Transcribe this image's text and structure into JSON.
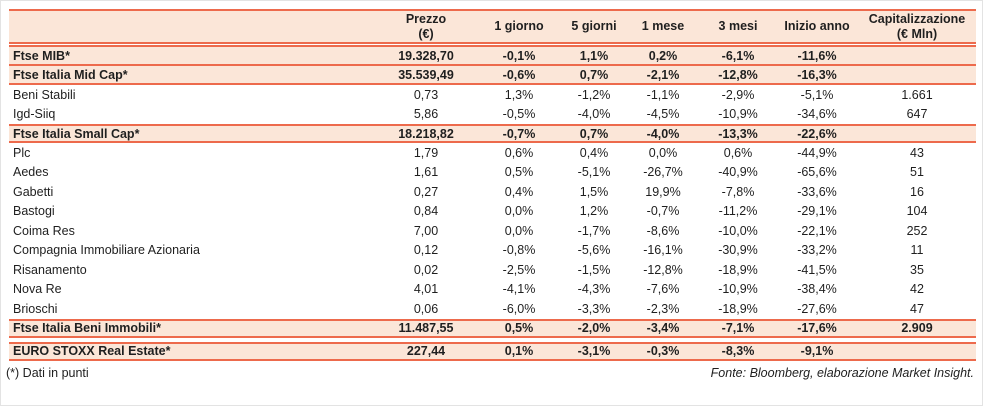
{
  "colors": {
    "accent": "#ed6a4c",
    "band": "#fbe6d8",
    "text": "#1f1f1f"
  },
  "table": {
    "header": {
      "name_label": "",
      "columns": [
        {
          "line1": "Prezzo",
          "line2": "(€)"
        },
        {
          "line1": "1 giorno",
          "line2": ""
        },
        {
          "line1": "5 giorni",
          "line2": ""
        },
        {
          "line1": "1 mese",
          "line2": ""
        },
        {
          "line1": "3 mesi",
          "line2": ""
        },
        {
          "line1": "Inizio anno",
          "line2": ""
        },
        {
          "line1": "Capitalizzazione",
          "line2": "(€ Mln)"
        }
      ]
    },
    "rows": [
      {
        "kind": "index",
        "name": "Ftse MIB*",
        "values": [
          "19.328,70",
          "-0,1%",
          "1,1%",
          "0,2%",
          "-6,1%",
          "-11,6%",
          ""
        ]
      },
      {
        "kind": "index",
        "name": "Ftse Italia Mid Cap*",
        "values": [
          "35.539,49",
          "-0,6%",
          "0,7%",
          "-2,1%",
          "-12,8%",
          "-16,3%",
          ""
        ]
      },
      {
        "kind": "stock",
        "name": "Beni Stabili",
        "values": [
          "0,73",
          "1,3%",
          "-1,2%",
          "-1,1%",
          "-2,9%",
          "-5,1%",
          "1.661"
        ]
      },
      {
        "kind": "stock",
        "name": "Igd-Siiq",
        "values": [
          "5,86",
          "-0,5%",
          "-4,0%",
          "-4,5%",
          "-10,9%",
          "-34,6%",
          "647"
        ]
      },
      {
        "kind": "index",
        "name": "Ftse Italia Small Cap*",
        "values": [
          "18.218,82",
          "-0,7%",
          "0,7%",
          "-4,0%",
          "-13,3%",
          "-22,6%",
          ""
        ]
      },
      {
        "kind": "stock",
        "name": "Plc",
        "values": [
          "1,79",
          "0,6%",
          "0,4%",
          "0,0%",
          "0,6%",
          "-44,9%",
          "43"
        ]
      },
      {
        "kind": "stock",
        "name": "Aedes",
        "values": [
          "1,61",
          "0,5%",
          "-5,1%",
          "-26,7%",
          "-40,9%",
          "-65,6%",
          "51"
        ]
      },
      {
        "kind": "stock",
        "name": "Gabetti",
        "values": [
          "0,27",
          "0,4%",
          "1,5%",
          "19,9%",
          "-7,8%",
          "-33,6%",
          "16"
        ]
      },
      {
        "kind": "stock",
        "name": "Bastogi",
        "values": [
          "0,84",
          "0,0%",
          "1,2%",
          "-0,7%",
          "-11,2%",
          "-29,1%",
          "104"
        ]
      },
      {
        "kind": "stock",
        "name": "Coima Res",
        "values": [
          "7,00",
          "0,0%",
          "-1,7%",
          "-8,6%",
          "-10,0%",
          "-22,1%",
          "252"
        ]
      },
      {
        "kind": "stock",
        "name": "Compagnia Immobiliare Azionaria",
        "values": [
          "0,12",
          "-0,8%",
          "-5,6%",
          "-16,1%",
          "-30,9%",
          "-33,2%",
          "11"
        ]
      },
      {
        "kind": "stock",
        "name": "Risanamento",
        "values": [
          "0,02",
          "-2,5%",
          "-1,5%",
          "-12,8%",
          "-18,9%",
          "-41,5%",
          "35"
        ]
      },
      {
        "kind": "stock",
        "name": "Nova Re",
        "values": [
          "4,01",
          "-4,1%",
          "-4,3%",
          "-7,6%",
          "-10,9%",
          "-38,4%",
          "42"
        ]
      },
      {
        "kind": "stock",
        "name": "Brioschi",
        "values": [
          "0,06",
          "-6,0%",
          "-3,3%",
          "-2,3%",
          "-18,9%",
          "-27,6%",
          "47"
        ]
      },
      {
        "kind": "index",
        "name": "Ftse Italia Beni Immobili*",
        "values": [
          "11.487,55",
          "0,5%",
          "-2,0%",
          "-3,4%",
          "-7,1%",
          "-17,6%",
          "2.909"
        ]
      },
      {
        "kind": "spacer"
      },
      {
        "kind": "index",
        "name": "EURO STOXX Real Estate*",
        "values": [
          "227,44",
          "0,1%",
          "-3,1%",
          "-0,3%",
          "-8,3%",
          "-9,1%",
          ""
        ]
      }
    ]
  },
  "footer": {
    "note": "(*) Dati in punti",
    "source": "Fonte: Bloomberg, elaborazione Market Insight."
  }
}
